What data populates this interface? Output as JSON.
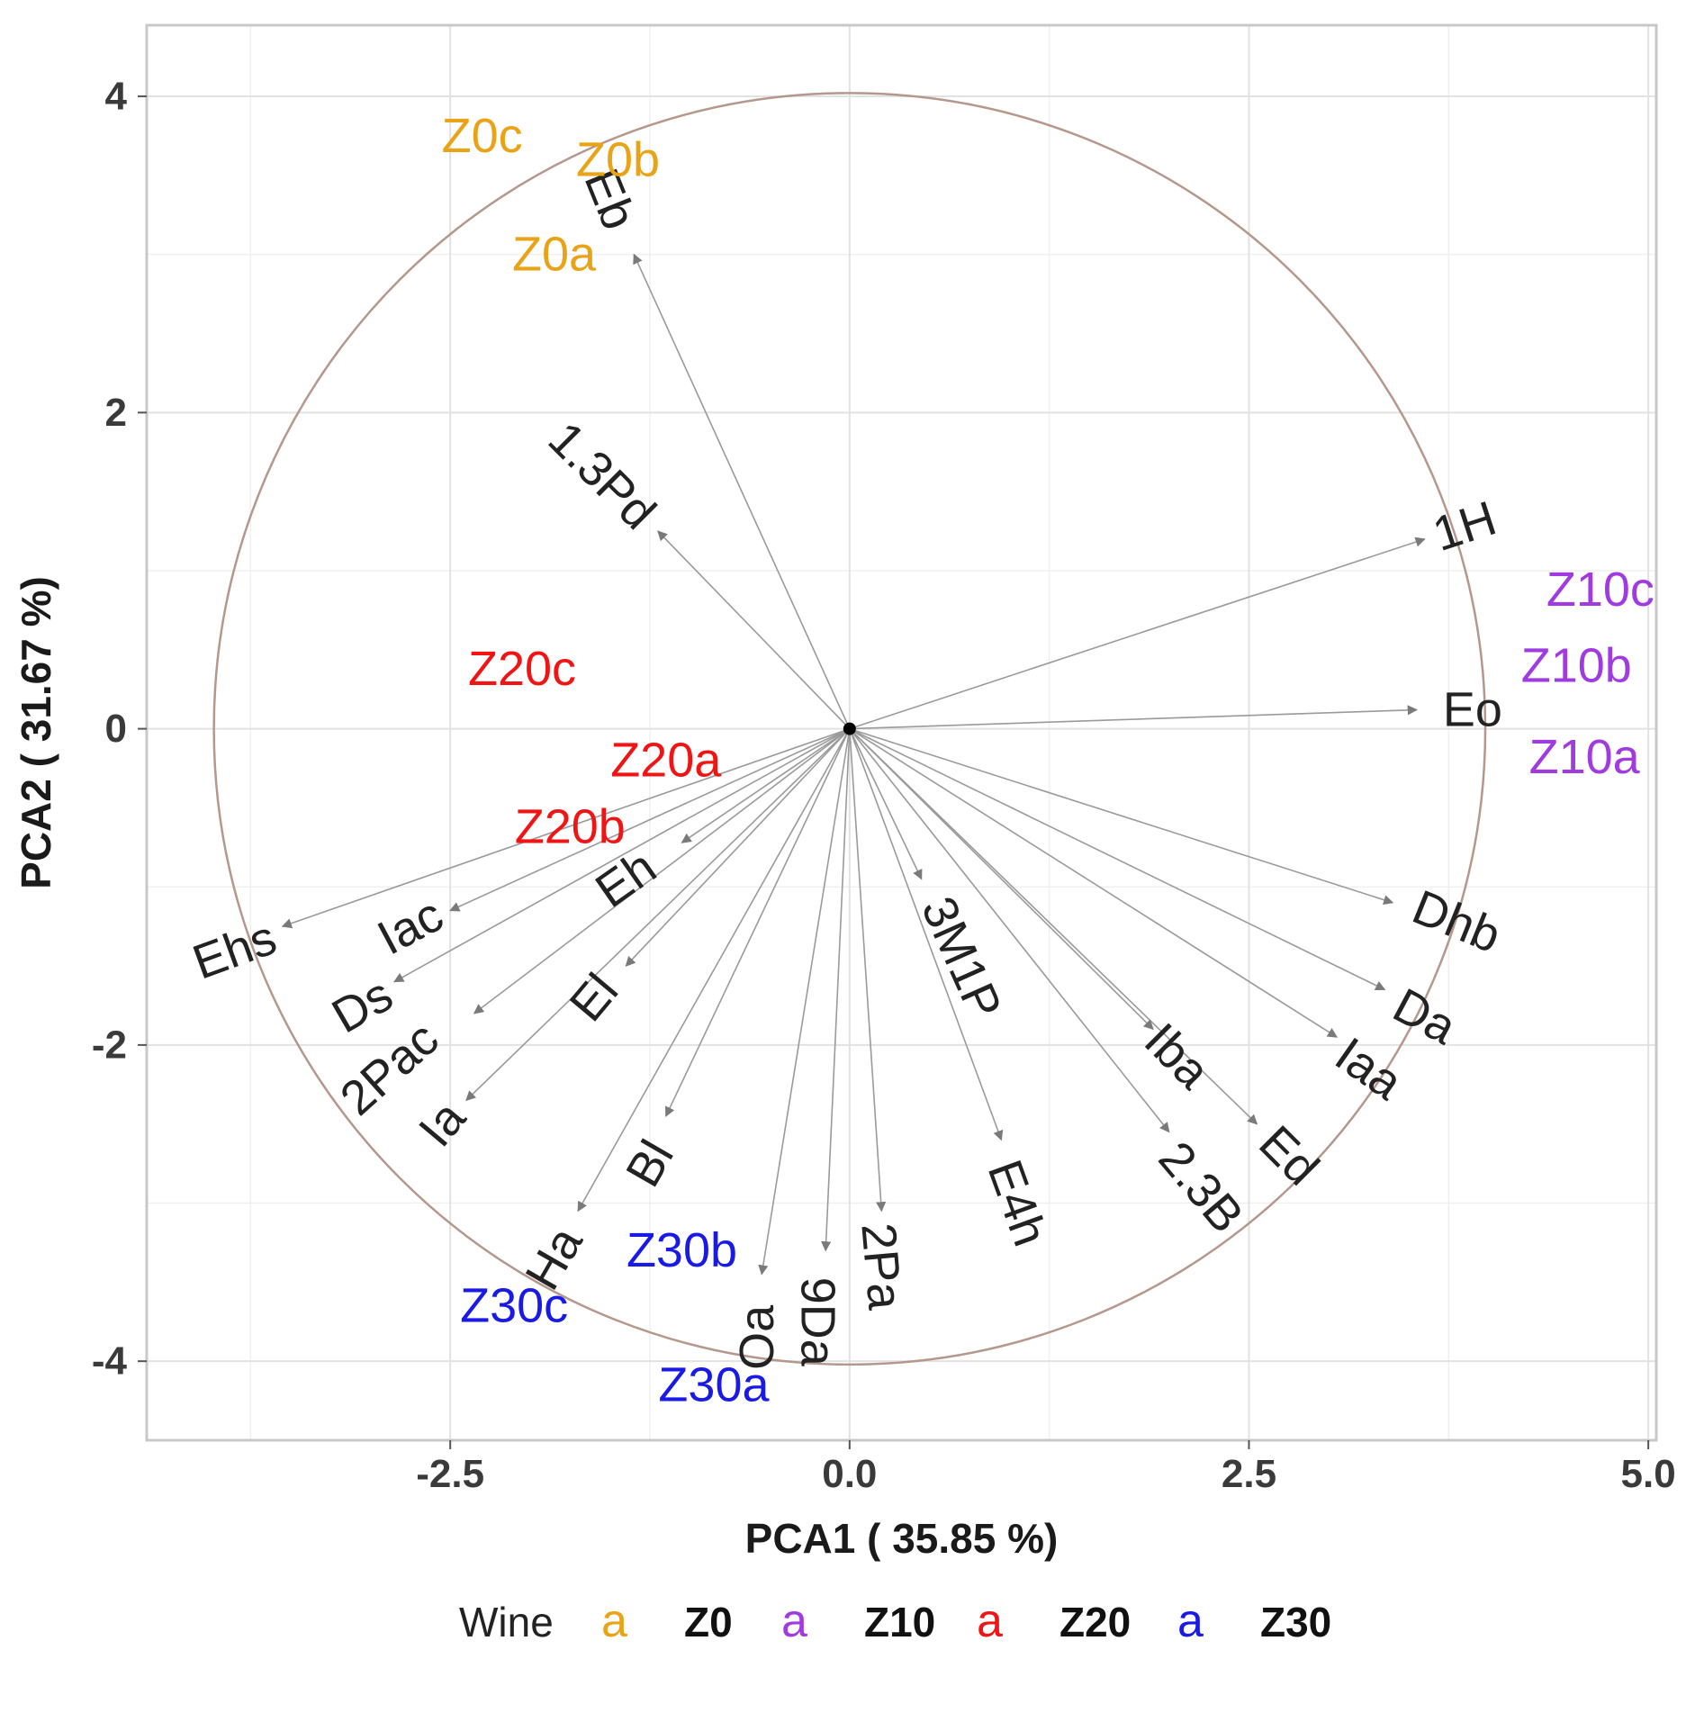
{
  "chart_data": {
    "type": "scatter",
    "subtype": "pca-biplot",
    "xlabel": "PCA1 ( 35.85 %)",
    "ylabel": "PCA2 ( 31.67 %)",
    "xlim": [
      -4.4,
      5.05
    ],
    "ylim": [
      -4.5,
      4.45
    ],
    "x_ticks": [
      -2.5,
      0.0,
      2.5,
      5.0
    ],
    "x_tick_labels": [
      "-2.5",
      "0.0",
      "2.5",
      "5.0"
    ],
    "y_ticks": [
      -4,
      -2,
      0,
      2,
      4
    ],
    "y_tick_labels": [
      "-4",
      "-2",
      "0",
      "2",
      "4"
    ],
    "grid": true,
    "circle": {
      "center": [
        0,
        0
      ],
      "radius": 4.0,
      "color": "#b5978b"
    },
    "origin_color": "#000000",
    "arrow_color": "#9a9a9a",
    "loadings": [
      {
        "name": "Eb",
        "x": -1.35,
        "y": 3.0,
        "label_x": -1.5,
        "label_y": 3.35,
        "rotation": 68
      },
      {
        "name": "1.3Pd",
        "x": -1.2,
        "y": 1.25,
        "label_x": -1.55,
        "label_y": 1.6,
        "rotation": 45
      },
      {
        "name": "1H",
        "x": 3.6,
        "y": 1.2,
        "label_x": 3.85,
        "label_y": 1.28,
        "rotation": -18
      },
      {
        "name": "Eo",
        "x": 3.55,
        "y": 0.12,
        "label_x": 3.9,
        "label_y": 0.12,
        "rotation": 0
      },
      {
        "name": "Dhb",
        "x": 3.4,
        "y": -1.1,
        "label_x": 3.8,
        "label_y": -1.22,
        "rotation": 22
      },
      {
        "name": "Da",
        "x": 3.35,
        "y": -1.65,
        "label_x": 3.6,
        "label_y": -1.82,
        "rotation": 28
      },
      {
        "name": "Iaa",
        "x": 3.05,
        "y": -1.95,
        "label_x": 3.25,
        "label_y": -2.15,
        "rotation": 35
      },
      {
        "name": "Ed",
        "x": 2.55,
        "y": -2.5,
        "label_x": 2.75,
        "label_y": -2.7,
        "rotation": 45
      },
      {
        "name": "Iba",
        "x": 1.9,
        "y": -1.9,
        "label_x": 2.05,
        "label_y": -2.07,
        "rotation": 45
      },
      {
        "name": "2.3B",
        "x": 2.0,
        "y": -2.55,
        "label_x": 2.2,
        "label_y": -2.9,
        "rotation": 50
      },
      {
        "name": "3M1P",
        "x": 0.45,
        "y": -0.95,
        "label_x": 0.7,
        "label_y": -1.45,
        "rotation": 66
      },
      {
        "name": "E4h",
        "x": 0.95,
        "y": -2.6,
        "label_x": 1.05,
        "label_y": -3.0,
        "rotation": 70
      },
      {
        "name": "2Pa",
        "x": 0.2,
        "y": -3.05,
        "label_x": 0.2,
        "label_y": -3.4,
        "rotation": 85
      },
      {
        "name": "9Da",
        "x": -0.15,
        "y": -3.3,
        "label_x": -0.2,
        "label_y": -3.75,
        "rotation": 90
      },
      {
        "name": "Oa",
        "x": -0.55,
        "y": -3.45,
        "label_x": -0.58,
        "label_y": -3.85,
        "rotation": -90
      },
      {
        "name": "Ha",
        "x": -1.7,
        "y": -3.05,
        "label_x": -1.85,
        "label_y": -3.35,
        "rotation": -60
      },
      {
        "name": "Bl",
        "x": -1.15,
        "y": -2.45,
        "label_x": -1.25,
        "label_y": -2.75,
        "rotation": -60
      },
      {
        "name": "El",
        "x": -1.4,
        "y": -1.5,
        "label_x": -1.6,
        "label_y": -1.7,
        "rotation": -50
      },
      {
        "name": "Eh",
        "x": -1.05,
        "y": -0.72,
        "label_x": -1.4,
        "label_y": -0.95,
        "rotation": -35
      },
      {
        "name": "Ia",
        "x": -2.4,
        "y": -2.35,
        "label_x": -2.55,
        "label_y": -2.5,
        "rotation": -50
      },
      {
        "name": "2Pac",
        "x": -2.35,
        "y": -1.8,
        "label_x": -2.88,
        "label_y": -2.15,
        "rotation": -42
      },
      {
        "name": "Ds",
        "x": -2.85,
        "y": -1.6,
        "label_x": -3.05,
        "label_y": -1.75,
        "rotation": -30
      },
      {
        "name": "Iac",
        "x": -2.5,
        "y": -1.15,
        "label_x": -2.75,
        "label_y": -1.25,
        "rotation": -28
      },
      {
        "name": "Ehs",
        "x": -3.55,
        "y": -1.25,
        "label_x": -3.85,
        "label_y": -1.4,
        "rotation": -20
      }
    ],
    "samples": [
      {
        "name": "Z0c",
        "group": "Z0",
        "x": -2.3,
        "y": 3.75
      },
      {
        "name": "Z0b",
        "group": "Z0",
        "x": -1.45,
        "y": 3.6
      },
      {
        "name": "Z0a",
        "group": "Z0",
        "x": -1.85,
        "y": 3.0
      },
      {
        "name": "Z10c",
        "group": "Z10",
        "x": 4.7,
        "y": 0.88
      },
      {
        "name": "Z10b",
        "group": "Z10",
        "x": 4.55,
        "y": 0.4
      },
      {
        "name": "Z10a",
        "group": "Z10",
        "x": 4.6,
        "y": -0.18
      },
      {
        "name": "Z20c",
        "group": "Z20",
        "x": -2.05,
        "y": 0.38
      },
      {
        "name": "Z20a",
        "group": "Z20",
        "x": -1.15,
        "y": -0.2
      },
      {
        "name": "Z20b",
        "group": "Z20",
        "x": -1.75,
        "y": -0.62
      },
      {
        "name": "Z30b",
        "group": "Z30",
        "x": -1.05,
        "y": -3.3
      },
      {
        "name": "Z30c",
        "group": "Z30",
        "x": -2.1,
        "y": -3.65
      },
      {
        "name": "Z30a",
        "group": "Z30",
        "x": -0.85,
        "y": -4.15
      }
    ],
    "legend": {
      "title": "Wine",
      "key_glyph": "a",
      "position": "bottom",
      "entries": [
        {
          "label": "Z0",
          "color": "#e8a317"
        },
        {
          "label": "Z10",
          "color": "#a03be0"
        },
        {
          "label": "Z20",
          "color": "#f01414"
        },
        {
          "label": "Z30",
          "color": "#1a1ae6"
        }
      ]
    }
  }
}
